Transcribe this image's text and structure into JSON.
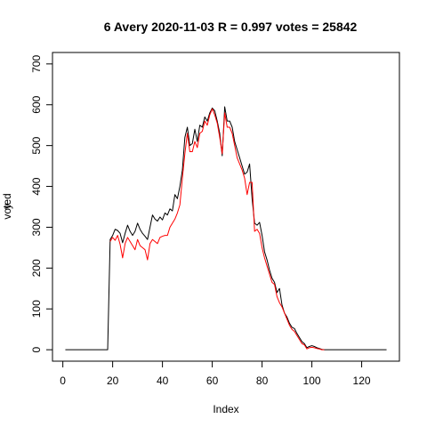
{
  "chart_data": {
    "type": "line",
    "title": "6 Avery 2020-11-03 R = 0.997 votes = 25842",
    "xlabel": "Index",
    "ylabel_overlap": [
      "y",
      "voted"
    ],
    "xlim": [
      1,
      130
    ],
    "ylim": [
      0,
      700
    ],
    "x_ticks": [
      0,
      20,
      40,
      60,
      80,
      100,
      120
    ],
    "y_ticks": [
      0,
      100,
      200,
      300,
      400,
      500,
      600,
      700
    ],
    "grid": false,
    "legend": "none",
    "x_start": 1,
    "series": [
      {
        "color": "#000000",
        "values": [
          0,
          0,
          0,
          0,
          0,
          0,
          0,
          0,
          0,
          0,
          0,
          0,
          0,
          0,
          0,
          0,
          0,
          0,
          270,
          280,
          295,
          292,
          285,
          262,
          285,
          305,
          290,
          280,
          290,
          310,
          295,
          285,
          278,
          270,
          300,
          330,
          320,
          315,
          325,
          318,
          335,
          330,
          345,
          340,
          380,
          370,
          400,
          440,
          520,
          545,
          500,
          505,
          540,
          510,
          550,
          545,
          570,
          560,
          580,
          592,
          585,
          560,
          530,
          475,
          595,
          560,
          560,
          545,
          510,
          490,
          470,
          450,
          430,
          435,
          455,
          370,
          310,
          305,
          312,
          280,
          240,
          220,
          195,
          175,
          165,
          140,
          150,
          110,
          90,
          80,
          65,
          55,
          52,
          40,
          30,
          20,
          15,
          5,
          8,
          10,
          8,
          5,
          3,
          1,
          0,
          0,
          0,
          0,
          0,
          0,
          0,
          0,
          0,
          0,
          0,
          0,
          0,
          0,
          0,
          0,
          0,
          0,
          0,
          0,
          0,
          0,
          0,
          0,
          0,
          0
        ]
      },
      {
        "color": "#ff0000",
        "values": [
          null,
          null,
          null,
          null,
          null,
          null,
          null,
          null,
          null,
          null,
          null,
          null,
          null,
          null,
          null,
          null,
          null,
          null,
          265,
          275,
          268,
          280,
          258,
          225,
          260,
          275,
          265,
          255,
          245,
          270,
          255,
          250,
          245,
          220,
          260,
          270,
          265,
          260,
          275,
          278,
          280,
          280,
          300,
          310,
          320,
          335,
          355,
          420,
          480,
          530,
          485,
          485,
          510,
          495,
          530,
          535,
          560,
          550,
          575,
          590,
          575,
          555,
          520,
          480,
          580,
          545,
          545,
          530,
          500,
          470,
          455,
          440,
          420,
          380,
          410,
          410,
          290,
          295,
          285,
          250,
          225,
          205,
          185,
          165,
          160,
          130,
          115,
          105,
          90,
          75,
          60,
          50,
          45,
          35,
          25,
          15,
          12,
          2,
          5,
          6,
          5,
          3,
          2,
          0,
          0,
          null,
          null,
          null,
          null,
          null,
          null,
          null,
          null,
          null,
          null,
          null,
          null,
          null,
          null,
          null,
          null,
          null,
          null,
          null,
          null,
          null,
          null,
          null,
          null,
          null
        ]
      }
    ]
  }
}
